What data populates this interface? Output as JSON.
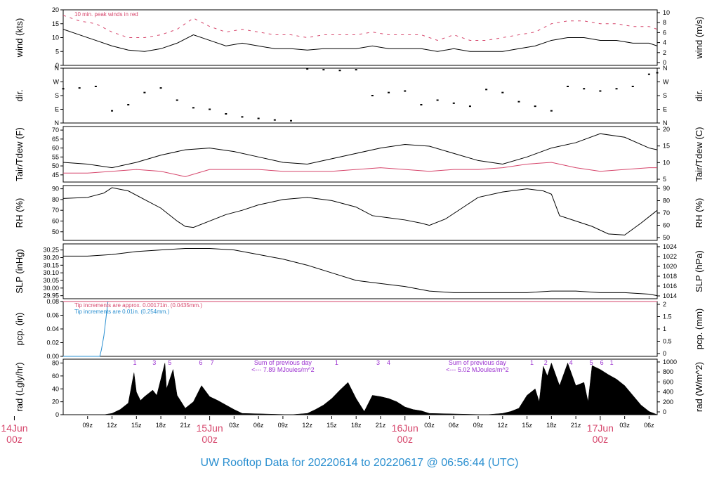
{
  "footer": {
    "title_parts": [
      "UW Rooftop Data for",
      "20220614",
      "to",
      "20220617 @ 06:56:44",
      "(UTC)"
    ],
    "title": "UW Rooftop Data for 20220614  to  20220617 @ 06:56:44  (UTC)"
  },
  "colors": {
    "primary": "#000000",
    "peak_wind": "#d6456b",
    "pcp_tip_fine": "#d6456b",
    "pcp_tip_coarse": "#2a8fd0",
    "annotation": "#9b30d0",
    "date_label": "#d6456b",
    "title": "#2a8fd0"
  },
  "time_axis": {
    "start_utc": "2022-06-14T06:00",
    "end_utc": "2022-06-17T07:00",
    "hour_ticks": [
      "09z",
      "12z",
      "15z",
      "18z",
      "21z",
      "03z",
      "06z",
      "09z",
      "12z",
      "15z",
      "18z",
      "21z",
      "03z",
      "06z",
      "09z",
      "12z",
      "15z",
      "18z",
      "21z",
      "03z",
      "06z"
    ],
    "hour_tick_hours": [
      9,
      12,
      15,
      18,
      21,
      27,
      30,
      33,
      36,
      39,
      42,
      45,
      51,
      54,
      57,
      60,
      63,
      66,
      69,
      75,
      78
    ],
    "date_labels": [
      {
        "hour": 0,
        "day": "14Jun",
        "time": "00z"
      },
      {
        "hour": 24,
        "day": "15Jun",
        "time": "00z"
      },
      {
        "hour": 48,
        "day": "16Jun",
        "time": "00z"
      },
      {
        "hour": 72,
        "day": "17Jun",
        "time": "00z"
      }
    ]
  },
  "chart_data": [
    {
      "id": "wind",
      "type": "line",
      "ylabel": "wind (kts)",
      "ylabel_right": "wind (m/s)",
      "ylim": [
        0,
        20
      ],
      "yticks": [
        0,
        5,
        10,
        15,
        20
      ],
      "yticks_right": [
        0,
        2,
        4,
        6,
        8,
        10
      ],
      "annotation": "10 min. peak winds in red",
      "series": [
        {
          "key": "speed",
          "x": [
            6,
            8,
            10,
            12,
            14,
            16,
            18,
            20,
            22,
            24,
            26,
            28,
            30,
            32,
            34,
            36,
            38,
            40,
            42,
            44,
            46,
            48,
            50,
            52,
            54,
            56,
            58,
            60,
            62,
            64,
            66,
            68,
            70,
            72,
            74,
            76,
            78,
            79
          ],
          "y": [
            13,
            11,
            9,
            7,
            5.5,
            5,
            6,
            8,
            11,
            9,
            7,
            8,
            7,
            6,
            6,
            5.5,
            6,
            6,
            6,
            7,
            6,
            6,
            6,
            5,
            6,
            5,
            5,
            5,
            6,
            7,
            9,
            10,
            10,
            9,
            9,
            8,
            8,
            7
          ]
        },
        {
          "key": "peak",
          "x": [
            6,
            8,
            10,
            12,
            14,
            16,
            18,
            20,
            22,
            24,
            26,
            28,
            30,
            32,
            34,
            36,
            38,
            40,
            42,
            44,
            46,
            48,
            50,
            52,
            54,
            56,
            58,
            60,
            62,
            64,
            66,
            68,
            70,
            72,
            74,
            76,
            78,
            79
          ],
          "y": [
            18,
            16,
            15,
            12,
            10,
            10,
            11,
            13,
            17,
            14,
            12,
            13,
            12,
            11,
            11,
            10,
            11,
            11,
            11,
            12,
            11,
            11,
            11,
            9,
            11,
            9,
            9,
            10,
            11,
            12,
            15,
            16,
            16,
            15,
            15,
            14,
            14,
            13
          ]
        }
      ]
    },
    {
      "id": "dir",
      "type": "scatter",
      "ylabel": "dir.",
      "ylabel_right": "dir.",
      "ylim": [
        0,
        360
      ],
      "yticks": [
        "N",
        "E",
        "S",
        "W",
        "N"
      ],
      "yticks_right": [
        "N",
        "E",
        "S",
        "W",
        "N"
      ],
      "series": [
        {
          "key": "direction",
          "x": [
            6,
            8,
            10,
            12,
            14,
            16,
            18,
            20,
            22,
            24,
            26,
            28,
            30,
            32,
            34,
            36,
            38,
            40,
            42,
            44,
            46,
            48,
            50,
            52,
            54,
            56,
            58,
            60,
            62,
            64,
            66,
            68,
            70,
            72,
            74,
            76,
            78,
            79
          ],
          "y": [
            225,
            230,
            240,
            80,
            120,
            200,
            230,
            150,
            100,
            90,
            60,
            40,
            30,
            20,
            15,
            355,
            350,
            345,
            350,
            180,
            200,
            210,
            120,
            150,
            130,
            110,
            220,
            200,
            140,
            110,
            80,
            240,
            225,
            210,
            225,
            240,
            320,
            330
          ]
        }
      ]
    },
    {
      "id": "temp",
      "type": "line",
      "ylabel": "Tair/Tdew (F)",
      "ylabel_right": "Tair/Tdew (C)",
      "ylim": [
        41,
        72
      ],
      "yticks": [
        45,
        50,
        55,
        60,
        65,
        70
      ],
      "yticks_right": [
        5,
        10,
        15,
        20
      ],
      "series": [
        {
          "key": "tair",
          "x": [
            6,
            9,
            12,
            15,
            18,
            21,
            24,
            27,
            30,
            33,
            36,
            39,
            42,
            45,
            48,
            51,
            54,
            57,
            60,
            63,
            66,
            69,
            72,
            75,
            78,
            79
          ],
          "y": [
            52,
            51,
            49,
            52,
            56,
            59,
            60,
            58,
            55,
            52,
            51,
            54,
            57,
            60,
            62,
            61,
            57,
            53,
            51,
            55,
            60,
            63,
            68,
            66,
            60,
            59
          ]
        },
        {
          "key": "tdew",
          "x": [
            6,
            9,
            12,
            15,
            18,
            21,
            24,
            27,
            30,
            33,
            36,
            39,
            42,
            45,
            48,
            51,
            54,
            57,
            60,
            63,
            66,
            69,
            72,
            75,
            78,
            79
          ],
          "y": [
            46,
            46,
            47,
            48,
            47,
            44,
            48,
            48,
            48,
            47,
            47,
            47,
            48,
            49,
            48,
            47,
            48,
            48,
            49,
            51,
            52,
            49,
            47,
            48,
            49,
            49
          ]
        }
      ]
    },
    {
      "id": "rh",
      "type": "line",
      "ylabel": "RH (%)",
      "ylabel_right": "RH (%)",
      "ylim": [
        42,
        93
      ],
      "yticks": [
        50,
        60,
        70,
        80,
        90
      ],
      "yticks_right": [
        50,
        60,
        70,
        80,
        90
      ],
      "series": [
        {
          "key": "rh",
          "x": [
            6,
            9,
            11,
            12,
            14,
            16,
            18,
            20,
            21,
            22,
            24,
            26,
            28,
            30,
            33,
            36,
            39,
            42,
            44,
            46,
            48,
            50,
            51,
            53,
            55,
            57,
            60,
            63,
            65,
            66,
            67,
            69,
            71,
            73,
            75,
            77,
            79
          ],
          "y": [
            81,
            82,
            86,
            91,
            88,
            80,
            72,
            60,
            55,
            54,
            60,
            66,
            70,
            75,
            80,
            82,
            79,
            73,
            65,
            63,
            61,
            58,
            56,
            62,
            72,
            82,
            87,
            90,
            88,
            85,
            65,
            60,
            55,
            48,
            47,
            58,
            70
          ]
        }
      ]
    },
    {
      "id": "slp",
      "type": "line",
      "ylabel": "SLP (inHg)",
      "ylabel_right": "SLP (hPa)",
      "ylim": [
        29.93,
        30.29
      ],
      "yticks": [
        29.95,
        30.0,
        30.05,
        30.1,
        30.15,
        30.2,
        30.25
      ],
      "yticks_right": [
        1014,
        1016,
        1018,
        1020,
        1022,
        1024
      ],
      "series": [
        {
          "key": "slp",
          "x": [
            6,
            9,
            12,
            15,
            18,
            21,
            24,
            27,
            30,
            33,
            36,
            39,
            42,
            45,
            48,
            51,
            54,
            57,
            60,
            63,
            66,
            69,
            72,
            75,
            78,
            79
          ],
          "y": [
            30.21,
            30.21,
            30.22,
            30.24,
            30.25,
            30.26,
            30.26,
            30.25,
            30.22,
            30.19,
            30.15,
            30.1,
            30.05,
            30.03,
            30.01,
            29.98,
            29.97,
            29.97,
            29.97,
            29.97,
            29.98,
            29.98,
            29.97,
            29.97,
            29.96,
            29.95
          ]
        }
      ]
    },
    {
      "id": "pcp",
      "type": "line",
      "ylabel": "pcp. (in)",
      "ylabel_right": "pcp. (mm)",
      "ylim": [
        0,
        0.08
      ],
      "yticks": [
        0.0,
        0.02,
        0.04,
        0.06,
        0.08
      ],
      "yticks_right": [
        0,
        0.5,
        1,
        1.5,
        2
      ],
      "annotations": [
        "Tip increments are approx. 0.00171in. (0.0435mm.)",
        "Tip increments are 0.01in. (0.254mm.)"
      ],
      "series": [
        {
          "key": "coarse",
          "x": [
            6,
            10.5,
            10.7,
            11.0,
            11.2,
            11.5,
            79
          ],
          "y": [
            0,
            0,
            0.01,
            0.03,
            0.05,
            0.08,
            0.08
          ]
        },
        {
          "key": "fine",
          "x": [
            6,
            79
          ],
          "y": [
            0.08,
            0.08
          ]
        }
      ]
    },
    {
      "id": "rad",
      "type": "area",
      "ylabel": "rad (Lgly/hr)",
      "ylabel_right": "rad (W/m^2)",
      "ylim": [
        0,
        86
      ],
      "yticks": [
        0,
        20,
        40,
        60,
        80
      ],
      "yticks_right": [
        0,
        200,
        400,
        600,
        800,
        1000
      ],
      "event_labels": [
        {
          "hour": 14.8,
          "text": "1"
        },
        {
          "hour": 17.2,
          "text": "3"
        },
        {
          "hour": 19.1,
          "text": "5"
        },
        {
          "hour": 22.9,
          "text": "6"
        },
        {
          "hour": 24.3,
          "text": "7"
        },
        {
          "hour": 39.6,
          "text": "1"
        },
        {
          "hour": 44.7,
          "text": "3"
        },
        {
          "hour": 46.0,
          "text": "4"
        },
        {
          "hour": 63.6,
          "text": "1"
        },
        {
          "hour": 65.3,
          "text": "2"
        },
        {
          "hour": 68.4,
          "text": "4"
        },
        {
          "hour": 70.9,
          "text": "5"
        },
        {
          "hour": 72.2,
          "text": "6"
        },
        {
          "hour": 73.4,
          "text": "1"
        }
      ],
      "day_summaries": [
        {
          "hour": 33.0,
          "line1": "Sum of previous day",
          "line2": "<--- 7.89 MJoules/m^2"
        },
        {
          "hour": 56.9,
          "line1": "Sum of previous day",
          "line2": "<--- 5.02 MJoules/m^2"
        }
      ],
      "series": [
        {
          "key": "rad",
          "x": [
            6,
            11,
            12,
            13,
            14,
            14.7,
            15.0,
            15.5,
            16,
            17,
            17.5,
            18.5,
            18.7,
            19.5,
            20,
            21,
            22,
            23,
            24,
            25,
            26,
            27,
            28,
            34,
            36,
            37,
            38,
            39,
            40,
            41,
            42,
            43,
            44,
            45,
            46,
            47,
            48,
            49,
            50,
            51,
            58,
            60,
            61,
            62,
            63,
            64,
            64.5,
            65,
            65.5,
            66,
            67,
            68,
            69,
            70,
            70.5,
            71,
            72,
            73,
            74,
            75,
            76,
            77,
            78,
            79
          ],
          "y": [
            0,
            0,
            2,
            8,
            18,
            65,
            35,
            22,
            28,
            38,
            30,
            80,
            40,
            70,
            30,
            10,
            20,
            45,
            28,
            22,
            15,
            8,
            2,
            0,
            2,
            8,
            15,
            25,
            38,
            50,
            25,
            5,
            30,
            28,
            25,
            20,
            12,
            8,
            6,
            2,
            0,
            2,
            5,
            10,
            30,
            40,
            20,
            75,
            60,
            80,
            45,
            80,
            45,
            50,
            20,
            76,
            70,
            62,
            55,
            45,
            30,
            15,
            5,
            0
          ]
        }
      ]
    }
  ]
}
